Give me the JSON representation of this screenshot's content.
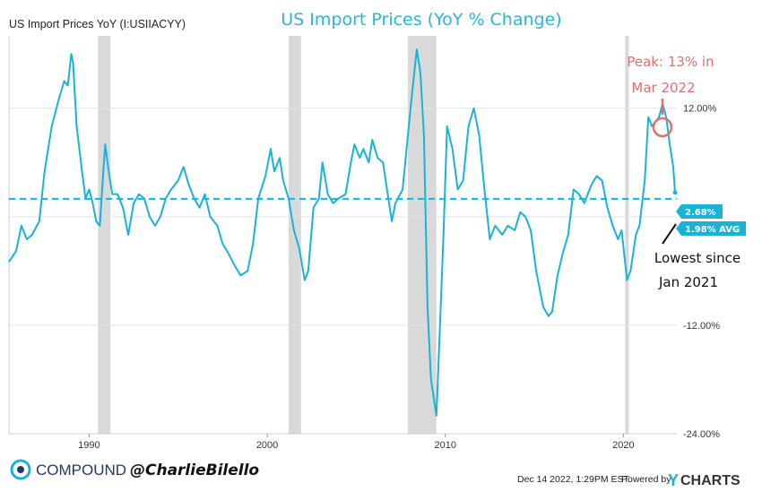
{
  "chart_data": {
    "type": "line",
    "series_label": "US Import Prices YoY (I:USIIACYY)",
    "title": "US Import Prices (YoY % Change)",
    "ylim": [
      -24,
      20
    ],
    "yticks": [
      12,
      -12,
      -24
    ],
    "ytick_labels": [
      "12.00%",
      "-12.00%",
      "-24.00%"
    ],
    "xlim": [
      1985.5,
      2023.0
    ],
    "xticks": [
      1990,
      2000,
      2010,
      2020
    ],
    "xtick_labels": [
      "1990",
      "2000",
      "2010",
      "2020"
    ],
    "grid": "horizontal",
    "colors": {
      "line": "#1ab3d6",
      "recession": "#d9d9d9",
      "peak_circle": "#e07070",
      "badge": "#1ab3d6"
    },
    "average": {
      "value": 1.98,
      "label": "1.98% AVG"
    },
    "last_value": {
      "value": 2.68,
      "label": "2.68%"
    },
    "recessions": [
      [
        1990.5,
        1991.2
      ],
      [
        2001.2,
        2001.9
      ],
      [
        2007.9,
        2009.5
      ],
      [
        2020.1,
        2020.3
      ]
    ],
    "series": [
      {
        "values": [
          [
            1985.5,
            -5.0
          ],
          [
            1985.9,
            -3.8
          ],
          [
            1986.2,
            -1.0
          ],
          [
            1986.5,
            -2.5
          ],
          [
            1986.8,
            -2.0
          ],
          [
            1987.2,
            -0.5
          ],
          [
            1987.5,
            5.0
          ],
          [
            1987.9,
            10.0
          ],
          [
            1988.3,
            13.0
          ],
          [
            1988.6,
            15.0
          ],
          [
            1988.8,
            14.5
          ],
          [
            1989.0,
            18.0
          ],
          [
            1989.1,
            17.0
          ],
          [
            1989.3,
            10.0
          ],
          [
            1989.6,
            5.0
          ],
          [
            1989.8,
            2.0
          ],
          [
            1990.0,
            3.0
          ],
          [
            1990.2,
            1.5
          ],
          [
            1990.4,
            -0.5
          ],
          [
            1990.6,
            -1.0
          ],
          [
            1990.8,
            5.0
          ],
          [
            1990.9,
            8.0
          ],
          [
            1991.1,
            5.0
          ],
          [
            1991.3,
            2.5
          ],
          [
            1991.6,
            2.5
          ],
          [
            1991.9,
            1.0
          ],
          [
            1992.2,
            -2.0
          ],
          [
            1992.5,
            1.5
          ],
          [
            1992.8,
            2.5
          ],
          [
            1993.1,
            2.0
          ],
          [
            1993.4,
            0.0
          ],
          [
            1993.7,
            -1.0
          ],
          [
            1994.0,
            0.0
          ],
          [
            1994.3,
            2.0
          ],
          [
            1994.6,
            3.0
          ],
          [
            1995.0,
            4.0
          ],
          [
            1995.3,
            5.5
          ],
          [
            1995.6,
            3.5
          ],
          [
            1995.9,
            2.0
          ],
          [
            1996.2,
            1.0
          ],
          [
            1996.5,
            2.5
          ],
          [
            1996.8,
            0.0
          ],
          [
            1997.2,
            -1.0
          ],
          [
            1997.5,
            -3.0
          ],
          [
            1997.8,
            -4.0
          ],
          [
            1998.2,
            -5.5
          ],
          [
            1998.5,
            -6.5
          ],
          [
            1998.9,
            -6.0
          ],
          [
            1999.2,
            -3.0
          ],
          [
            1999.5,
            2.0
          ],
          [
            1999.9,
            4.5
          ],
          [
            2000.2,
            7.5
          ],
          [
            2000.4,
            5.0
          ],
          [
            2000.7,
            6.5
          ],
          [
            2000.9,
            4.0
          ],
          [
            2001.2,
            2.0
          ],
          [
            2001.5,
            -1.5
          ],
          [
            2001.8,
            -3.5
          ],
          [
            2002.1,
            -7.0
          ],
          [
            2002.3,
            -6.0
          ],
          [
            2002.6,
            1.0
          ],
          [
            2002.9,
            2.0
          ],
          [
            2003.1,
            6.0
          ],
          [
            2003.4,
            2.5
          ],
          [
            2003.7,
            1.5
          ],
          [
            2004.0,
            2.0
          ],
          [
            2004.4,
            2.5
          ],
          [
            2004.7,
            6.0
          ],
          [
            2004.9,
            8.0
          ],
          [
            2005.2,
            6.5
          ],
          [
            2005.4,
            7.5
          ],
          [
            2005.7,
            6.0
          ],
          [
            2005.9,
            8.5
          ],
          [
            2006.2,
            6.5
          ],
          [
            2006.5,
            6.0
          ],
          [
            2006.8,
            2.0
          ],
          [
            2007.0,
            -0.5
          ],
          [
            2007.2,
            1.5
          ],
          [
            2007.6,
            3.0
          ],
          [
            2007.9,
            9.0
          ],
          [
            2008.1,
            13.0
          ],
          [
            2008.4,
            18.5
          ],
          [
            2008.6,
            16.0
          ],
          [
            2008.8,
            9.0
          ],
          [
            2009.0,
            -10.0
          ],
          [
            2009.2,
            -18.0
          ],
          [
            2009.5,
            -22.0
          ],
          [
            2009.7,
            -12.0
          ],
          [
            2009.9,
            -2.0
          ],
          [
            2010.1,
            10.0
          ],
          [
            2010.4,
            7.5
          ],
          [
            2010.7,
            3.0
          ],
          [
            2011.0,
            4.0
          ],
          [
            2011.3,
            10.0
          ],
          [
            2011.6,
            12.0
          ],
          [
            2011.9,
            9.0
          ],
          [
            2012.2,
            3.0
          ],
          [
            2012.5,
            -2.5
          ],
          [
            2012.8,
            -1.0
          ],
          [
            2013.2,
            -2.0
          ],
          [
            2013.5,
            -1.0
          ],
          [
            2013.9,
            -1.5
          ],
          [
            2014.2,
            0.5
          ],
          [
            2014.5,
            0.0
          ],
          [
            2014.8,
            -1.5
          ],
          [
            2015.1,
            -6.0
          ],
          [
            2015.5,
            -10.0
          ],
          [
            2015.8,
            -11.0
          ],
          [
            2016.0,
            -10.5
          ],
          [
            2016.3,
            -6.5
          ],
          [
            2016.6,
            -4.0
          ],
          [
            2016.9,
            -2.0
          ],
          [
            2017.2,
            3.0
          ],
          [
            2017.5,
            2.5
          ],
          [
            2017.8,
            1.5
          ],
          [
            2018.2,
            3.5
          ],
          [
            2018.5,
            4.5
          ],
          [
            2018.8,
            4.0
          ],
          [
            2019.1,
            1.0
          ],
          [
            2019.4,
            -1.0
          ],
          [
            2019.7,
            -2.5
          ],
          [
            2019.9,
            -1.5
          ],
          [
            2020.2,
            -7.0
          ],
          [
            2020.4,
            -6.0
          ],
          [
            2020.7,
            -2.0
          ],
          [
            2020.9,
            -1.0
          ],
          [
            2021.2,
            4.0
          ],
          [
            2021.4,
            11.0
          ],
          [
            2021.6,
            10.0
          ],
          [
            2021.8,
            10.5
          ],
          [
            2022.0,
            11.0
          ],
          [
            2022.2,
            12.5
          ],
          [
            2022.4,
            11.0
          ],
          [
            2022.6,
            8.0
          ],
          [
            2022.8,
            5.5
          ],
          [
            2022.9,
            2.68
          ]
        ]
      }
    ]
  },
  "annotations": {
    "peak_lines": [
      "Peak: 13% in",
      "Mar 2022"
    ],
    "low_lines": [
      "Lowest since",
      "Jan 2021"
    ]
  },
  "footer": {
    "brand": "COMPOUND",
    "handle": "@CharlieBilello",
    "timestamp": "Dec 14 2022, 1:29PM EST.",
    "powered_by": "Powered by",
    "ycharts_y": "Y",
    "ycharts_rest": "CHARTS"
  }
}
